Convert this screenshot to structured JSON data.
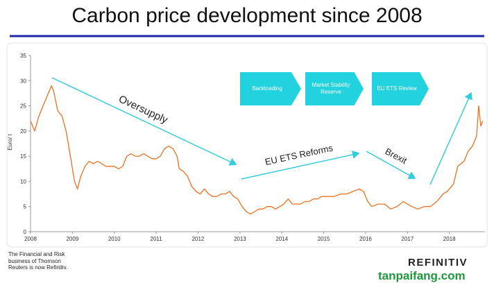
{
  "chart_data": {
    "type": "line",
    "title": "Carbon price development since 2008",
    "y_label": "Euro/ t",
    "xlim": [
      2008,
      2018.85
    ],
    "xticks": [
      2008,
      2009,
      2010,
      2011,
      2012,
      2013,
      2014,
      2015,
      2016,
      2017,
      2018
    ],
    "ylim": [
      0,
      35
    ],
    "yticks": [
      0,
      5,
      10,
      15,
      20,
      25,
      30,
      35
    ],
    "grid": false,
    "annotations": [
      "Oversupply",
      "EU ETS Reforms",
      "Brexit"
    ],
    "boxes": [
      "Backloading",
      "Market Stability Reserve",
      "EU ETS Review"
    ],
    "series": [
      {
        "name": "Carbon price",
        "color": "#f07020",
        "x": [
          2008.0,
          2008.1,
          2008.2,
          2008.3,
          2008.4,
          2008.5,
          2008.55,
          2008.65,
          2008.75,
          2008.85,
          2008.95,
          2009.05,
          2009.12,
          2009.2,
          2009.3,
          2009.4,
          2009.5,
          2009.6,
          2009.7,
          2009.8,
          2009.9,
          2010.0,
          2010.1,
          2010.2,
          2010.3,
          2010.4,
          2010.5,
          2010.6,
          2010.7,
          2010.8,
          2010.9,
          2011.0,
          2011.1,
          2011.2,
          2011.3,
          2011.4,
          2011.5,
          2011.55,
          2011.65,
          2011.75,
          2011.85,
          2011.95,
          2012.05,
          2012.15,
          2012.25,
          2012.35,
          2012.45,
          2012.55,
          2012.65,
          2012.75,
          2012.85,
          2012.95,
          2013.05,
          2013.15,
          2013.25,
          2013.35,
          2013.45,
          2013.55,
          2013.65,
          2013.75,
          2013.85,
          2013.95,
          2014.05,
          2014.15,
          2014.25,
          2014.35,
          2014.45,
          2014.55,
          2014.65,
          2014.75,
          2014.85,
          2014.95,
          2015.1,
          2015.25,
          2015.4,
          2015.55,
          2015.7,
          2015.85,
          2015.95,
          2016.05,
          2016.15,
          2016.3,
          2016.45,
          2016.6,
          2016.75,
          2016.9,
          2017.0,
          2017.1,
          2017.25,
          2017.4,
          2017.55,
          2017.7,
          2017.85,
          2017.95,
          2018.1,
          2018.2,
          2018.35,
          2018.45,
          2018.55,
          2018.65,
          2018.7,
          2018.75,
          2018.8
        ],
        "values": [
          22,
          20,
          23,
          25,
          27,
          29,
          28,
          24,
          23,
          20,
          15,
          10,
          8.5,
          11,
          13,
          14,
          13.5,
          14,
          13.5,
          13,
          13,
          13,
          12.5,
          13,
          15,
          15.5,
          15,
          15,
          15.5,
          15,
          14.5,
          14.5,
          15,
          16.5,
          17,
          16.5,
          15,
          12.5,
          12,
          11,
          9,
          8,
          7.5,
          8.5,
          7.5,
          7,
          7,
          7.5,
          7.5,
          8,
          7,
          6.5,
          5,
          4,
          3.5,
          4,
          4.5,
          4.5,
          5,
          5,
          4.5,
          5,
          5.5,
          6.5,
          5.5,
          5.5,
          5.5,
          6,
          6,
          6.5,
          6.5,
          7,
          7,
          7,
          7.5,
          7.5,
          8,
          8.5,
          8,
          6,
          5,
          5.5,
          5.5,
          4.5,
          5,
          6,
          5.5,
          5,
          4.5,
          5,
          5,
          6,
          7.5,
          8,
          9.5,
          13,
          14,
          16,
          17,
          19,
          25,
          21,
          22
        ]
      }
    ]
  },
  "footer": {
    "note": "The Financial and Risk business of Thomson Reuters is now Refinitiv.",
    "brand": "REFINITIV",
    "watermark": "tanpaifang.com"
  }
}
